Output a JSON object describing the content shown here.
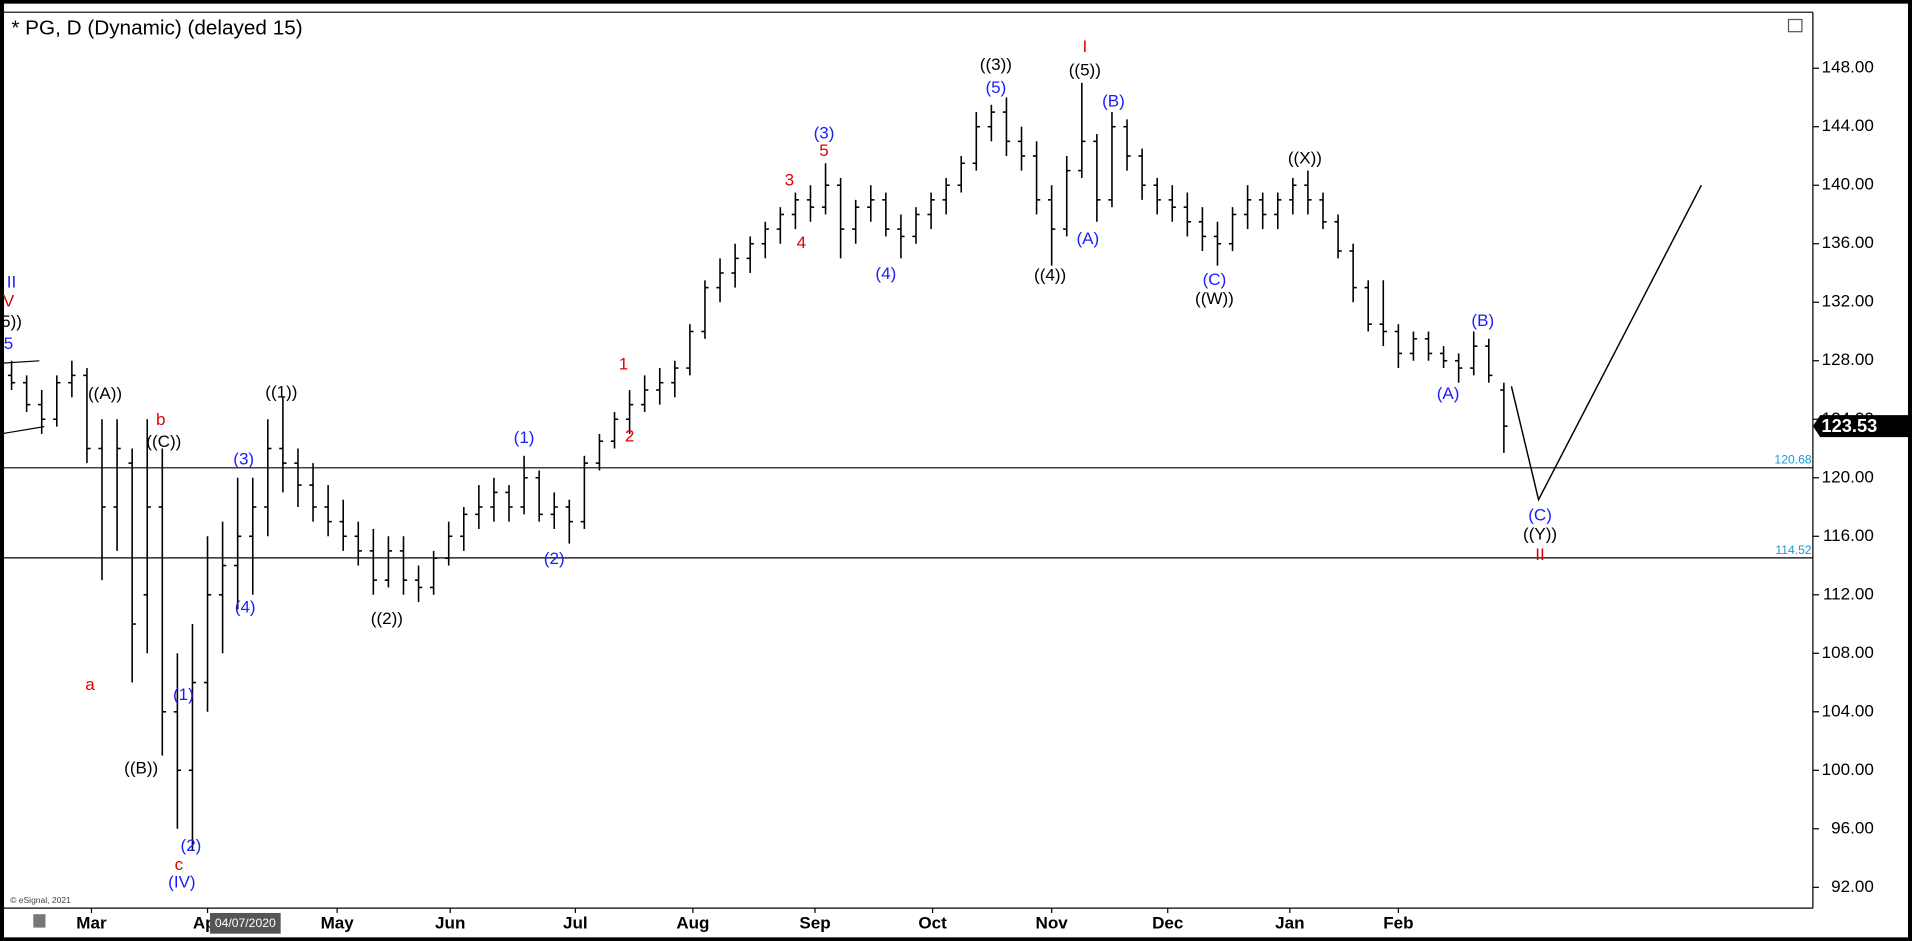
{
  "chart_data": {
    "type": "ohlc",
    "title": "* PG, D (Dynamic) (delayed 15)",
    "footer": "© eSignal, 2021",
    "cursor_label": "04/07/2020",
    "color": "#000000",
    "xlim": [
      0,
      120
    ],
    "ylim": [
      90.58,
      151.83
    ],
    "yticks": [
      {
        "value": 92,
        "label": "92.00"
      },
      {
        "value": 96,
        "label": "96.00"
      },
      {
        "value": 100,
        "label": "100.00"
      },
      {
        "value": 104,
        "label": "104.00"
      },
      {
        "value": 108,
        "label": "108.00"
      },
      {
        "value": 112,
        "label": "112.00"
      },
      {
        "value": 116,
        "label": "116.00"
      },
      {
        "value": 120,
        "label": "120.00"
      },
      {
        "value": 124,
        "label": "124.00"
      },
      {
        "value": 128,
        "label": "128.00"
      },
      {
        "value": 132,
        "label": "132.00"
      },
      {
        "value": 136,
        "label": "136.00"
      },
      {
        "value": 140,
        "label": "140.00"
      },
      {
        "value": 144,
        "label": "144.00"
      },
      {
        "value": 148,
        "label": "148.00"
      }
    ],
    "xticks": [
      {
        "value": 5.8,
        "label": "Mar"
      },
      {
        "value": 13.5,
        "label": "Apr"
      },
      {
        "value": 22.1,
        "label": "May"
      },
      {
        "value": 29.6,
        "label": "Jun"
      },
      {
        "value": 37.9,
        "label": "Jul"
      },
      {
        "value": 45.7,
        "label": "Aug"
      },
      {
        "value": 53.8,
        "label": "Sep"
      },
      {
        "value": 61.6,
        "label": "Oct"
      },
      {
        "value": 69.5,
        "label": "Nov"
      },
      {
        "value": 77.2,
        "label": "Dec"
      },
      {
        "value": 85.3,
        "label": "Jan"
      },
      {
        "value": 92.5,
        "label": "Feb"
      }
    ],
    "bars": [
      [
        127,
        128,
        126,
        126.5
      ],
      [
        126.5,
        127,
        124.5,
        125
      ],
      [
        125,
        126,
        123,
        124
      ],
      [
        124,
        127,
        123.5,
        126.5
      ],
      [
        126.5,
        128,
        125.5,
        127
      ],
      [
        127,
        127.5,
        121,
        122
      ],
      [
        122,
        124,
        113,
        118
      ],
      [
        118,
        124,
        115,
        122
      ],
      [
        121,
        122,
        106,
        110
      ],
      [
        112,
        124,
        108,
        118
      ],
      [
        118,
        122,
        101,
        104
      ],
      [
        104,
        108,
        96,
        100
      ],
      [
        100,
        110,
        94.5,
        106
      ],
      [
        106,
        116,
        104,
        112
      ],
      [
        112,
        117,
        108,
        114
      ],
      [
        114,
        120,
        111,
        116
      ],
      [
        116,
        120,
        112,
        118
      ],
      [
        118,
        124,
        116,
        122
      ],
      [
        122,
        125.5,
        119,
        121
      ],
      [
        121,
        122,
        118,
        119.5
      ],
      [
        119.5,
        121,
        117,
        118
      ],
      [
        118,
        119.5,
        116,
        117
      ],
      [
        117,
        118.5,
        115,
        116
      ],
      [
        116,
        117,
        114,
        115
      ],
      [
        115,
        116.5,
        112,
        113
      ],
      [
        113,
        116,
        112.5,
        115
      ],
      [
        115,
        116,
        112,
        113
      ],
      [
        113,
        114,
        111.5,
        112.5
      ],
      [
        112.5,
        115,
        112,
        114.5
      ],
      [
        114.5,
        117,
        114,
        116
      ],
      [
        116,
        118,
        115,
        117.5
      ],
      [
        117.5,
        119.5,
        116.5,
        118
      ],
      [
        118,
        120,
        117,
        119
      ],
      [
        119,
        119.5,
        117,
        118
      ],
      [
        118,
        121.5,
        117.5,
        120
      ],
      [
        120,
        120.5,
        117,
        117.5
      ],
      [
        117.5,
        119,
        116.5,
        118
      ],
      [
        118,
        118.5,
        115.5,
        117
      ],
      [
        117,
        121.5,
        116.5,
        121
      ],
      [
        121,
        123,
        120.5,
        122.5
      ],
      [
        122.5,
        124.5,
        122,
        124
      ],
      [
        124,
        126,
        123,
        125
      ],
      [
        125,
        127,
        124.5,
        126
      ],
      [
        126,
        127.5,
        125,
        126.5
      ],
      [
        126.5,
        128,
        125.5,
        127.5
      ],
      [
        127.5,
        130.5,
        127,
        130
      ],
      [
        130,
        133.5,
        129.5,
        133
      ],
      [
        133,
        135,
        132,
        134
      ],
      [
        134,
        136,
        133,
        135
      ],
      [
        135,
        136.5,
        134,
        136
      ],
      [
        136,
        137.5,
        135,
        137
      ],
      [
        137,
        138.5,
        136,
        138
      ],
      [
        138,
        139.5,
        137,
        139
      ],
      [
        139,
        140,
        137.5,
        138.5
      ],
      [
        138.5,
        141.5,
        138,
        140
      ],
      [
        140,
        140.5,
        135,
        137
      ],
      [
        137,
        139,
        136,
        138.5
      ],
      [
        138.5,
        140,
        137.5,
        139
      ],
      [
        139,
        139.5,
        136.5,
        137
      ],
      [
        137,
        138,
        135,
        136.5
      ],
      [
        136.5,
        138.5,
        136,
        138
      ],
      [
        138,
        139.5,
        137,
        139
      ],
      [
        139,
        140.5,
        138,
        140
      ],
      [
        140,
        142,
        139.5,
        141.5
      ],
      [
        141.5,
        145,
        141,
        144
      ],
      [
        144,
        145.5,
        143,
        145
      ],
      [
        145,
        146,
        142,
        143
      ],
      [
        143,
        144,
        141,
        142
      ],
      [
        142,
        143,
        138,
        139
      ],
      [
        139,
        140,
        134.5,
        137
      ],
      [
        137,
        142,
        136.5,
        141
      ],
      [
        141,
        147,
        140.5,
        143
      ],
      [
        143,
        143.5,
        137.5,
        139
      ],
      [
        139,
        145,
        138.5,
        144
      ],
      [
        144,
        144.5,
        141,
        142
      ],
      [
        142,
        142.5,
        139,
        140
      ],
      [
        140,
        140.5,
        138,
        139
      ],
      [
        139,
        140,
        137.5,
        138.5
      ],
      [
        138.5,
        139.5,
        136.5,
        137.5
      ],
      [
        137.5,
        138.5,
        135.5,
        136.5
      ],
      [
        136.5,
        137.5,
        134.5,
        136
      ],
      [
        136,
        138.5,
        135.5,
        138
      ],
      [
        138,
        140,
        137,
        139
      ],
      [
        139,
        139.5,
        137,
        138
      ],
      [
        138,
        139.5,
        137,
        139
      ],
      [
        139,
        140.5,
        138,
        140
      ],
      [
        140,
        141,
        138,
        139
      ],
      [
        139,
        139.5,
        137,
        137.5
      ],
      [
        137.5,
        138,
        135,
        135.5
      ],
      [
        135.5,
        136,
        132,
        133
      ],
      [
        133,
        133.5,
        130,
        130.5
      ],
      [
        130.5,
        133.5,
        129,
        130
      ],
      [
        130,
        130.5,
        127.5,
        128.5
      ],
      [
        128.5,
        130,
        128,
        129.5
      ],
      [
        129.5,
        130,
        128,
        128.5
      ],
      [
        128.5,
        129,
        127.5,
        128
      ],
      [
        128,
        128.5,
        126.5,
        127.5
      ],
      [
        127.5,
        130,
        127,
        129
      ],
      [
        129,
        129.5,
        126.5,
        127
      ],
      [
        126,
        126.5,
        121.7,
        123.53
      ]
    ],
    "levels": [
      120.68,
      114.52
    ],
    "last_price": 123.53,
    "projection": {
      "x": [
        100.0,
        101.8,
        112.6
      ],
      "values": [
        126.25,
        118.5,
        140.0
      ]
    },
    "annotations": [
      {
        "text": "II",
        "color": "#1c1cff",
        "x": 0.5,
        "y": 133.3
      },
      {
        "text": "V",
        "color": "#e00000",
        "x": 0.3,
        "y": 132.0
      },
      {
        "text": "5))",
        "color": "#000000",
        "x": 0.5,
        "y": 130.6
      },
      {
        "text": "5",
        "color": "#1c1cff",
        "x": 0.3,
        "y": 129.1
      },
      {
        "text": "((A))",
        "color": "#000000",
        "x": 6.7,
        "y": 125.7
      },
      {
        "text": "b",
        "color": "#e00000",
        "x": 10.4,
        "y": 123.9
      },
      {
        "text": "((C))",
        "color": "#000000",
        "x": 10.6,
        "y": 122.4
      },
      {
        "text": "((1))",
        "color": "#000000",
        "x": 18.4,
        "y": 125.8
      },
      {
        "text": "(3)",
        "color": "#1c1cff",
        "x": 15.9,
        "y": 121.2
      },
      {
        "text": "(4)",
        "color": "#1c1cff",
        "x": 16.0,
        "y": 111.1
      },
      {
        "text": "a",
        "color": "#e00000",
        "x": 5.7,
        "y": 105.8
      },
      {
        "text": "((B))",
        "color": "#000000",
        "x": 9.1,
        "y": 100.1
      },
      {
        "text": "(1)",
        "color": "#1c1cff",
        "x": 11.9,
        "y": 105.1
      },
      {
        "text": "(2)",
        "color": "#1c1cff",
        "x": 12.4,
        "y": 94.8
      },
      {
        "text": "c",
        "color": "#e00000",
        "x": 11.6,
        "y": 93.5
      },
      {
        "text": "(IV)",
        "color": "#1c1cff",
        "x": 11.8,
        "y": 92.3
      },
      {
        "text": "((2))",
        "color": "#000000",
        "x": 25.4,
        "y": 110.3
      },
      {
        "text": "(1)",
        "color": "#1c1cff",
        "x": 34.5,
        "y": 122.7
      },
      {
        "text": "(2)",
        "color": "#1c1cff",
        "x": 36.5,
        "y": 114.4
      },
      {
        "text": "1",
        "color": "#e00000",
        "x": 41.1,
        "y": 127.7
      },
      {
        "text": "2",
        "color": "#e00000",
        "x": 41.5,
        "y": 122.8
      },
      {
        "text": "3",
        "color": "#e00000",
        "x": 52.1,
        "y": 140.3
      },
      {
        "text": "4",
        "color": "#e00000",
        "x": 52.9,
        "y": 136.0
      },
      {
        "text": "5",
        "color": "#e00000",
        "x": 54.4,
        "y": 142.3
      },
      {
        "text": "(3)",
        "color": "#1c1cff",
        "x": 54.4,
        "y": 143.5
      },
      {
        "text": "(4)",
        "color": "#1c1cff",
        "x": 58.5,
        "y": 133.9
      },
      {
        "text": "(5)",
        "color": "#1c1cff",
        "x": 65.8,
        "y": 146.6
      },
      {
        "text": "((3))",
        "color": "#000000",
        "x": 65.8,
        "y": 148.2
      },
      {
        "text": "((4))",
        "color": "#000000",
        "x": 69.4,
        "y": 133.8
      },
      {
        "text": "I",
        "color": "#e00000",
        "x": 71.7,
        "y": 149.4
      },
      {
        "text": "((5))",
        "color": "#000000",
        "x": 71.7,
        "y": 147.8
      },
      {
        "text": "(B)",
        "color": "#1c1cff",
        "x": 73.6,
        "y": 145.7
      },
      {
        "text": "(A)",
        "color": "#1c1cff",
        "x": 71.9,
        "y": 136.3
      },
      {
        "text": "(C)",
        "color": "#1c1cff",
        "x": 80.3,
        "y": 133.5
      },
      {
        "text": "((W))",
        "color": "#000000",
        "x": 80.3,
        "y": 132.2
      },
      {
        "text": "((X))",
        "color": "#000000",
        "x": 86.3,
        "y": 141.8
      },
      {
        "text": "(B)",
        "color": "#1c1cff",
        "x": 98.1,
        "y": 130.7
      },
      {
        "text": "(A)",
        "color": "#1c1cff",
        "x": 95.8,
        "y": 125.7
      },
      {
        "text": "(C)",
        "color": "#1c1cff",
        "x": 101.9,
        "y": 117.4
      },
      {
        "text": "((Y))",
        "color": "#000000",
        "x": 101.9,
        "y": 116.1
      },
      {
        "text": "II",
        "color": "#e00000",
        "x": 101.9,
        "y": 114.7
      }
    ]
  }
}
